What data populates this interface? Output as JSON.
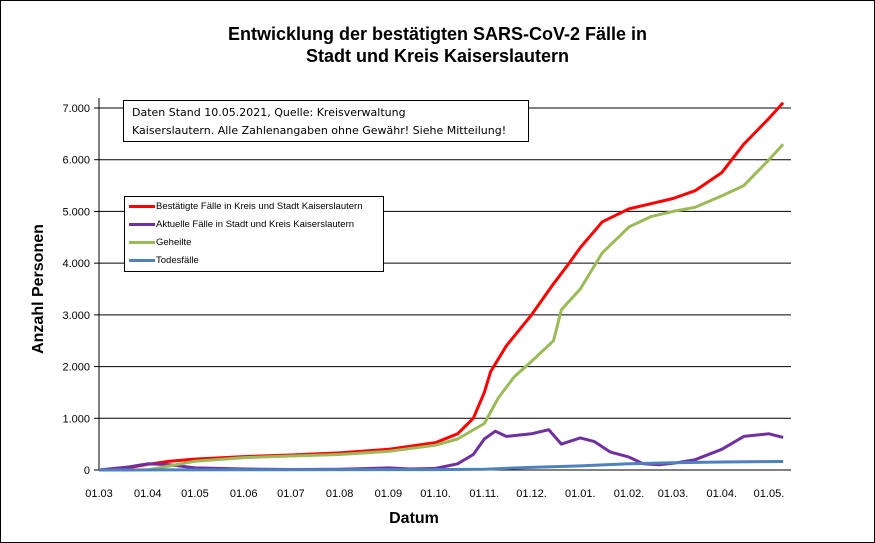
{
  "chart_data": {
    "type": "line",
    "title": "Entwicklung der bestätigten SARS-CoV-2 Fälle in Stadt und Kreis Kaiserslautern",
    "title_lines": [
      "Entwicklung der bestätigten SARS-CoV-2 Fälle in",
      "Stadt und Kreis Kaiserslautern"
    ],
    "xlabel": "Datum",
    "ylabel": "Anzahl Personen",
    "ylim": [
      0,
      7000
    ],
    "xlim": [
      "2020-03-01",
      "2021-05-15"
    ],
    "grid": "horizontal",
    "legend_placement": "upper-left",
    "yticks": [
      0,
      1000,
      2000,
      3000,
      4000,
      5000,
      6000,
      7000
    ],
    "ytick_labels": [
      "0",
      "1.000",
      "2.000",
      "3.000",
      "4.000",
      "5.000",
      "6.000",
      "7.000"
    ],
    "xticks": [
      "2020-03-01",
      "2020-04-01",
      "2020-05-01",
      "2020-06-01",
      "2020-07-01",
      "2020-08-01",
      "2020-09-01",
      "2020-10-01",
      "2020-11-01",
      "2020-12-01",
      "2021-01-01",
      "2021-02-01",
      "2021-03-01",
      "2021-04-01",
      "2021-05-01"
    ],
    "xtick_labels": [
      "01.03",
      "01.04",
      "01.05",
      "01.06",
      "01.07",
      "01.08",
      "01.09",
      "01.10.",
      "01.11.",
      "01.12.",
      "01.01.",
      "01.02.",
      "01.03.",
      "01.04.",
      "01.05."
    ],
    "annotation": [
      "Daten Stand 10.05.2021, Quelle: Kreisverwaltung",
      "Kaiserslautern. Alle Zahlenangaben ohne Gewähr! Siehe Mitteilung!"
    ],
    "series": [
      {
        "name": "Bestätigte Fälle in Kreis und Stadt Kaiserslautern",
        "color": "#ff0000",
        "points": [
          [
            "2020-03-01",
            0
          ],
          [
            "2020-03-15",
            20
          ],
          [
            "2020-04-01",
            110
          ],
          [
            "2020-04-15",
            170
          ],
          [
            "2020-05-01",
            210
          ],
          [
            "2020-06-01",
            260
          ],
          [
            "2020-07-01",
            290
          ],
          [
            "2020-08-01",
            330
          ],
          [
            "2020-09-01",
            400
          ],
          [
            "2020-09-15",
            460
          ],
          [
            "2020-10-01",
            530
          ],
          [
            "2020-10-15",
            700
          ],
          [
            "2020-10-25",
            1000
          ],
          [
            "2020-11-01",
            1500
          ],
          [
            "2020-11-05",
            1900
          ],
          [
            "2020-11-15",
            2400
          ],
          [
            "2020-12-01",
            3000
          ],
          [
            "2020-12-15",
            3600
          ],
          [
            "2020-12-25",
            4000
          ],
          [
            "2021-01-01",
            4300
          ],
          [
            "2021-01-15",
            4800
          ],
          [
            "2021-02-01",
            5050
          ],
          [
            "2021-02-15",
            5150
          ],
          [
            "2021-03-01",
            5250
          ],
          [
            "2021-03-15",
            5400
          ],
          [
            "2021-04-01",
            5750
          ],
          [
            "2021-04-15",
            6300
          ],
          [
            "2021-05-01",
            6800
          ],
          [
            "2021-05-10",
            7100
          ]
        ]
      },
      {
        "name": "Aktuelle Fälle in Stadt und Kreis Kaiserslautern",
        "color": "#7030a0",
        "points": [
          [
            "2020-03-01",
            0
          ],
          [
            "2020-03-20",
            60
          ],
          [
            "2020-04-01",
            120
          ],
          [
            "2020-04-15",
            100
          ],
          [
            "2020-05-01",
            40
          ],
          [
            "2020-06-01",
            20
          ],
          [
            "2020-07-01",
            10
          ],
          [
            "2020-08-01",
            15
          ],
          [
            "2020-09-01",
            40
          ],
          [
            "2020-09-15",
            20
          ],
          [
            "2020-10-01",
            30
          ],
          [
            "2020-10-15",
            120
          ],
          [
            "2020-10-25",
            300
          ],
          [
            "2020-11-01",
            600
          ],
          [
            "2020-11-08",
            750
          ],
          [
            "2020-11-15",
            650
          ],
          [
            "2020-12-01",
            700
          ],
          [
            "2020-12-12",
            780
          ],
          [
            "2020-12-20",
            500
          ],
          [
            "2021-01-01",
            620
          ],
          [
            "2021-01-10",
            550
          ],
          [
            "2021-01-20",
            350
          ],
          [
            "2021-02-01",
            250
          ],
          [
            "2021-02-10",
            120
          ],
          [
            "2021-02-20",
            100
          ],
          [
            "2021-03-01",
            130
          ],
          [
            "2021-03-15",
            200
          ],
          [
            "2021-04-01",
            400
          ],
          [
            "2021-04-15",
            650
          ],
          [
            "2021-05-01",
            700
          ],
          [
            "2021-05-10",
            630
          ]
        ]
      },
      {
        "name": "Geheilte",
        "color": "#9bbb59",
        "points": [
          [
            "2020-04-01",
            0
          ],
          [
            "2020-04-15",
            80
          ],
          [
            "2020-05-01",
            170
          ],
          [
            "2020-06-01",
            240
          ],
          [
            "2020-07-01",
            270
          ],
          [
            "2020-08-01",
            300
          ],
          [
            "2020-09-01",
            360
          ],
          [
            "2020-10-01",
            480
          ],
          [
            "2020-10-15",
            600
          ],
          [
            "2020-11-01",
            900
          ],
          [
            "2020-11-10",
            1400
          ],
          [
            "2020-11-20",
            1800
          ],
          [
            "2020-12-01",
            2100
          ],
          [
            "2020-12-15",
            2500
          ],
          [
            "2020-12-20",
            3100
          ],
          [
            "2021-01-01",
            3500
          ],
          [
            "2021-01-15",
            4200
          ],
          [
            "2021-02-01",
            4700
          ],
          [
            "2021-02-15",
            4900
          ],
          [
            "2021-03-01",
            5000
          ],
          [
            "2021-03-15",
            5080
          ],
          [
            "2021-04-01",
            5300
          ],
          [
            "2021-04-15",
            5500
          ],
          [
            "2021-05-01",
            6000
          ],
          [
            "2021-05-10",
            6300
          ]
        ]
      },
      {
        "name": "Todesfälle",
        "color": "#4f81bd",
        "points": [
          [
            "2020-03-01",
            0
          ],
          [
            "2020-04-01",
            2
          ],
          [
            "2020-06-01",
            5
          ],
          [
            "2020-10-01",
            8
          ],
          [
            "2020-11-01",
            15
          ],
          [
            "2020-12-01",
            50
          ],
          [
            "2021-01-01",
            80
          ],
          [
            "2021-02-01",
            120
          ],
          [
            "2021-03-01",
            140
          ],
          [
            "2021-04-01",
            155
          ],
          [
            "2021-05-10",
            165
          ]
        ]
      }
    ]
  }
}
